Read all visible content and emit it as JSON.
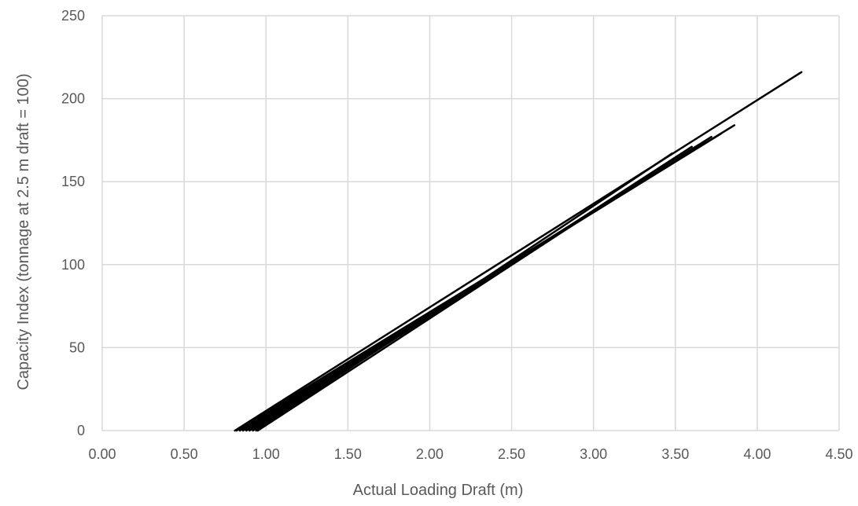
{
  "chart_data": {
    "type": "line",
    "title": "",
    "xlabel": "Actual Loading Draft (m)",
    "ylabel": "Capacity Index (tonnage at 2.5 m draft = 100)",
    "xlim": [
      0,
      4.5
    ],
    "ylim": [
      0,
      250
    ],
    "x_ticks": [
      "0.00",
      "0.50",
      "1.00",
      "1.50",
      "2.00",
      "2.50",
      "3.00",
      "3.50",
      "4.00",
      "4.50"
    ],
    "y_ticks": [
      "0",
      "50",
      "100",
      "150",
      "200",
      "250"
    ],
    "grid": true,
    "legend": "none",
    "line_color": "#000000",
    "series": [
      {
        "x": [
          0.81,
          4.27
        ],
        "y": [
          0,
          216
        ]
      },
      {
        "x": [
          0.82,
          3.86
        ],
        "y": [
          0,
          184
        ]
      },
      {
        "x": [
          0.84,
          3.78
        ],
        "y": [
          0,
          179
        ]
      },
      {
        "x": [
          0.86,
          3.72
        ],
        "y": [
          0,
          177
        ]
      },
      {
        "x": [
          0.88,
          3.68
        ],
        "y": [
          0,
          174
        ]
      },
      {
        "x": [
          0.9,
          3.64
        ],
        "y": [
          0,
          172
        ]
      },
      {
        "x": [
          0.92,
          3.6
        ],
        "y": [
          0,
          171
        ]
      },
      {
        "x": [
          0.94,
          3.48
        ],
        "y": [
          0,
          167
        ]
      },
      {
        "x": [
          0.95,
          3.56
        ],
        "y": [
          0,
          168
        ]
      }
    ]
  }
}
